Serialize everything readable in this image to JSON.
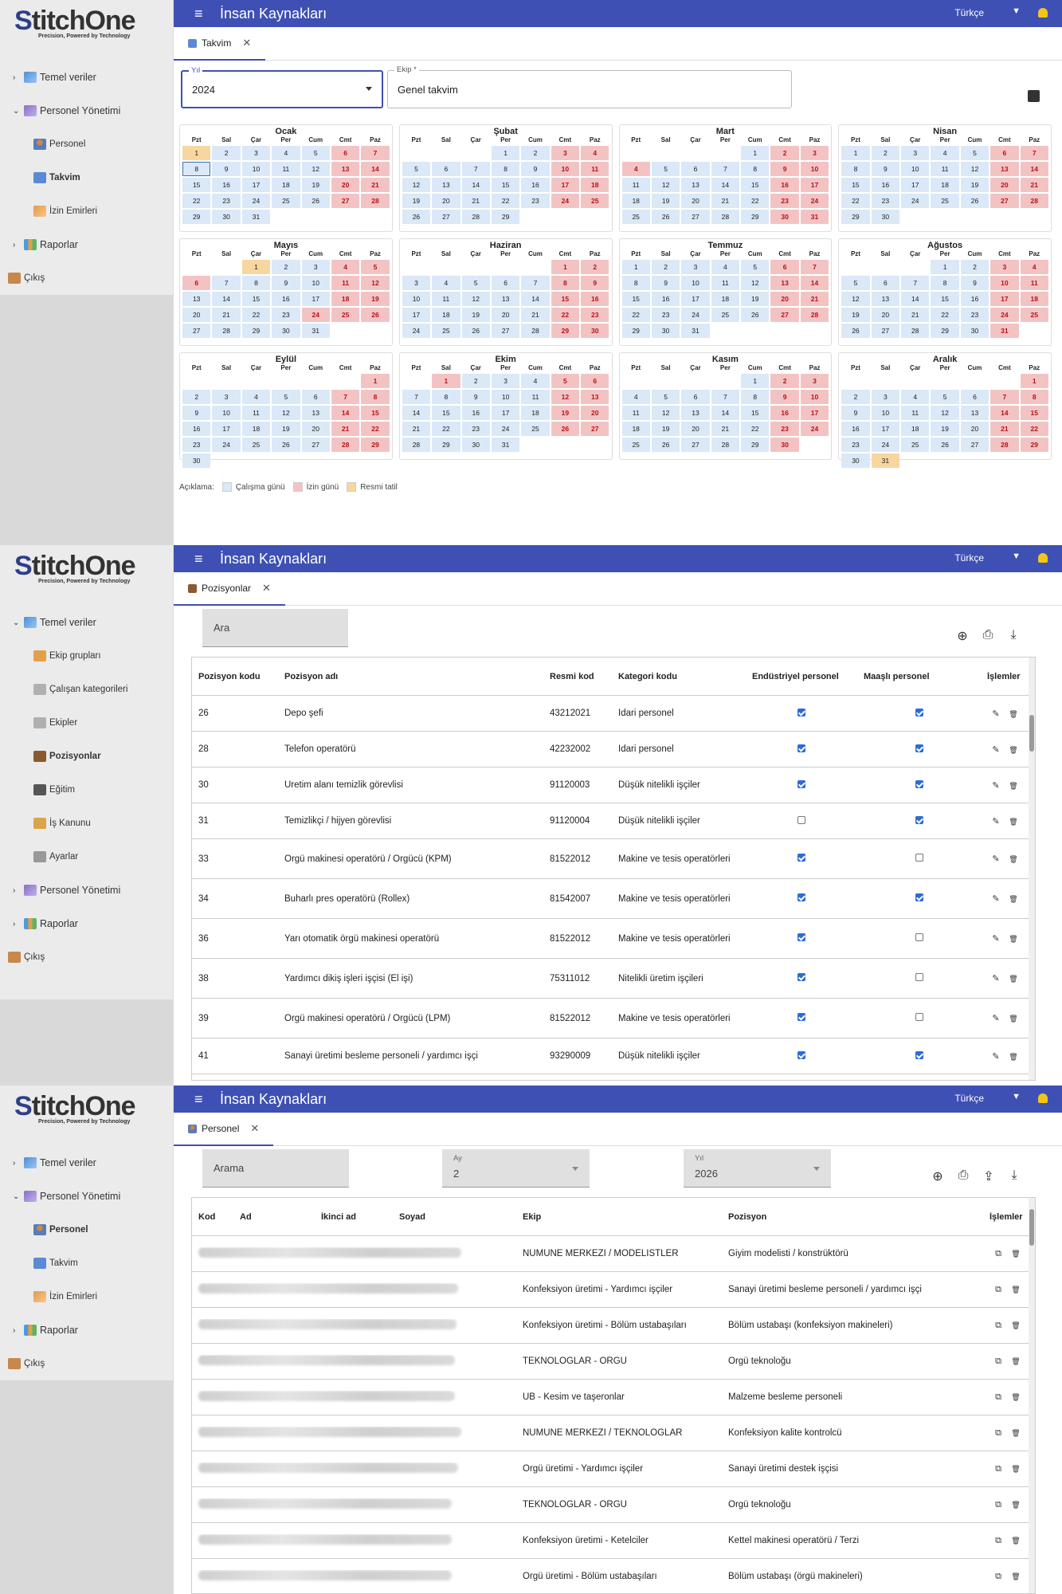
{
  "app": {
    "title": "İnsan Kaynakları",
    "language": "Türkçe",
    "logo_main": "StitchOne",
    "logo_tagline": "Precision, Powered by Technology"
  },
  "screen1": {
    "nav": [
      {
        "label": "Temel veriler",
        "level": 0,
        "chev": "›",
        "icon": "database-icon"
      },
      {
        "label": "Personel Yönetimi",
        "level": 0,
        "chev": "⌄",
        "icon": "people-icon"
      },
      {
        "label": "Personel",
        "level": 1,
        "icon": "person-icon"
      },
      {
        "label": "Takvim",
        "level": 1,
        "active": true,
        "icon": "calendar-icon"
      },
      {
        "label": "İzin Emirleri",
        "level": 1,
        "icon": "document-icon"
      },
      {
        "label": "Raporlar",
        "level": 0,
        "chev": "›",
        "icon": "chart-icon"
      },
      {
        "label": "Çıkış",
        "level": 2,
        "icon": "exit-icon"
      }
    ],
    "tab": "Takvim",
    "year_label": "Yıl",
    "year_value": "2024",
    "team_label": "Ekip *",
    "team_value": "Genel takvim",
    "day_headers": [
      "Pzt",
      "Sal",
      "Çar",
      "Per",
      "Cum",
      "Cmt",
      "Paz"
    ],
    "months": [
      "Ocak",
      "Şubat",
      "Mart",
      "Nisan",
      "Mayıs",
      "Haziran",
      "Temmuz",
      "Ağustos",
      "Eylül",
      "Ekim",
      "Kasım",
      "Aralık"
    ],
    "holidays": {
      "0": [
        1
      ],
      "3": [],
      "4": [
        1
      ],
      "11": [
        31
      ]
    },
    "extra_off": {
      "0": [],
      "2": [
        4
      ],
      "3": [],
      "4": [
        6,
        24
      ],
      "9": [
        1
      ],
      "11": []
    },
    "legend_title": "Açıklama:",
    "legend": [
      {
        "label": "Çalışma günü",
        "color": "#dae8f7"
      },
      {
        "label": "İzin günü",
        "color": "#f3c3c3"
      },
      {
        "label": "Resmi tatil",
        "color": "#f8d6a0"
      }
    ]
  },
  "screen2": {
    "nav": [
      {
        "label": "Temel veriler",
        "level": 0,
        "chev": "⌄",
        "icon": "database-icon"
      },
      {
        "label": "Ekip grupları",
        "level": 1,
        "icon": "team-group-icon"
      },
      {
        "label": "Çalışan kategorileri",
        "level": 1,
        "icon": "category-icon"
      },
      {
        "label": "Ekipler",
        "level": 1,
        "icon": "teams-icon"
      },
      {
        "label": "Pozisyonlar",
        "level": 1,
        "active": true,
        "icon": "briefcase-icon"
      },
      {
        "label": "Eğitim",
        "level": 1,
        "icon": "graduation-cap-icon"
      },
      {
        "label": "İş Kanunu",
        "level": 1,
        "icon": "law-icon"
      },
      {
        "label": "Ayarlar",
        "level": 1,
        "icon": "gear-icon"
      },
      {
        "label": "Personel Yönetimi",
        "level": 0,
        "chev": "›",
        "icon": "people-icon"
      },
      {
        "label": "Raporlar",
        "level": 0,
        "chev": "›",
        "icon": "chart-icon"
      },
      {
        "label": "Çıkış",
        "level": 2,
        "icon": "exit-icon"
      }
    ],
    "tab": "Pozisyonlar",
    "search_placeholder": "Ara",
    "columns": [
      "Pozisyon kodu",
      "Pozisyon adı",
      "Resmi kod",
      "Kategori kodu",
      "Endüstriyel personel",
      "Maaşlı personel",
      "İşlemler"
    ],
    "rows": [
      {
        "code": "26",
        "name": "Depo şefi",
        "official": "43212021",
        "category": "İdari personel",
        "industrial": true,
        "salaried": true
      },
      {
        "code": "28",
        "name": "Telefon operatörü",
        "official": "42232002",
        "category": "İdari personel",
        "industrial": true,
        "salaried": true
      },
      {
        "code": "30",
        "name": "Üretim alanı temizlik görevlisi",
        "official": "91120003",
        "category": "Düşük nitelikli işçiler",
        "industrial": true,
        "salaried": true
      },
      {
        "code": "31",
        "name": "Temizlikçi / hijyen görevlisi",
        "official": "91120004",
        "category": "Düşük nitelikli işçiler",
        "industrial": false,
        "salaried": true
      },
      {
        "code": "33",
        "name": "Örgü makinesi operatörü / Örgücü (KPM)",
        "official": "81522012",
        "category": "Makine ve tesis operatörleri",
        "industrial": true,
        "salaried": false
      },
      {
        "code": "34",
        "name": "Buharlı pres operatörü (Rollex)",
        "official": "81542007",
        "category": "Makine ve tesis operatörleri",
        "industrial": true,
        "salaried": true
      },
      {
        "code": "36",
        "name": "Yarı otomatik örgü makinesi operatörü",
        "official": "81522012",
        "category": "Makine ve tesis operatörleri",
        "industrial": true,
        "salaried": false
      },
      {
        "code": "38",
        "name": "Yardımcı dikiş işleri işçisi (El işi)",
        "official": "75311012",
        "category": "Nitelikli üretim işçileri",
        "industrial": true,
        "salaried": false
      },
      {
        "code": "39",
        "name": "Örgü makinesi operatörü / Örgücü (LPM)",
        "official": "81522012",
        "category": "Makine ve tesis operatörleri",
        "industrial": true,
        "salaried": false
      },
      {
        "code": "41",
        "name": "Sanayi üretimi besleme personeli / yardımcı işçi",
        "official": "93290009",
        "category": "Düşük nitelikli işçiler",
        "industrial": true,
        "salaried": true
      }
    ]
  },
  "screen3": {
    "nav": [
      {
        "label": "Temel veriler",
        "level": 0,
        "chev": "›",
        "icon": "database-icon"
      },
      {
        "label": "Personel Yönetimi",
        "level": 0,
        "chev": "⌄",
        "icon": "people-icon"
      },
      {
        "label": "Personel",
        "level": 1,
        "active": true,
        "icon": "person-icon"
      },
      {
        "label": "Takvim",
        "level": 1,
        "icon": "calendar-icon"
      },
      {
        "label": "İzin Emirleri",
        "level": 1,
        "icon": "document-icon"
      },
      {
        "label": "Raporlar",
        "level": 0,
        "chev": "›",
        "icon": "chart-icon"
      },
      {
        "label": "Çıkış",
        "level": 2,
        "icon": "exit-icon"
      }
    ],
    "tab": "Personel",
    "search_placeholder": "Arama",
    "month_label": "Ay",
    "month_value": "2",
    "year_label": "Yıl",
    "year_value": "2026",
    "columns": [
      "Kod",
      "Ad",
      "İkinci ad",
      "Soyad",
      "Ekip",
      "Pozisyon",
      "İşlemler"
    ],
    "rows": [
      {
        "team": "NUMUNE MERKEZİ / MODELİSTLER",
        "position": "Giyim modelisti / konstrüktörü"
      },
      {
        "team": "Konfeksiyon üretimi - Yardımcı işçiler",
        "position": "Sanayi üretimi besleme personeli / yardımcı işçi"
      },
      {
        "team": "Konfeksiyon üretimi - Bölüm ustabaşıları",
        "position": "Bölüm ustabaşı (konfeksiyon makineleri)"
      },
      {
        "team": "TEKNOLOGLAR - ÖRGÜ",
        "position": "Örgü teknoloğu"
      },
      {
        "team": "ÜB - Kesim ve taşeronlar",
        "position": "Malzeme besleme personeli"
      },
      {
        "team": "NUMUNE MERKEZİ / TEKNOLOGLAR",
        "position": "Konfeksiyon kalite kontrolcü"
      },
      {
        "team": "Örgü üretimi - Yardımcı işçiler",
        "position": "Sanayi üretimi destek işçisi"
      },
      {
        "team": "TEKNOLOGLAR - ÖRGÜ",
        "position": "Örgü teknoloğu"
      },
      {
        "team": "Konfeksiyon üretimi - Ketelciler",
        "position": "Kettel makinesi operatörü / Terzi"
      },
      {
        "team": "Örgü üretimi - Bölüm ustabaşıları",
        "position": "Bölüm ustabaşı (örgü makineleri)"
      }
    ]
  }
}
